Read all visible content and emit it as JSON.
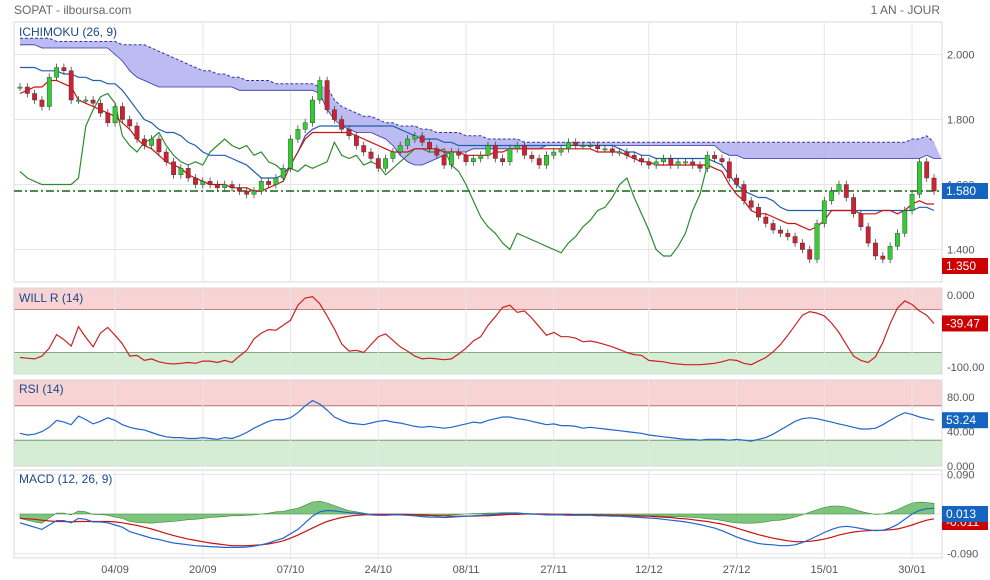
{
  "header": {
    "title": "SOPAT - ilboursa.com",
    "period": "1 AN - JOUR"
  },
  "colors": {
    "up": "#33cc33",
    "down": "#cc2233",
    "tenkan": "#cc1111",
    "kijun": "#1f5fb0",
    "chikou": "#2e8b2e",
    "cloud": "#b0b0f0",
    "cloud_line": "#3333aa",
    "level": "#116611",
    "willr": "#cc2222",
    "rsi": "#2266cc",
    "macd": "#2266cc",
    "signal": "#cc1111",
    "hist": "#66bb66",
    "badge_blue": "#1565c0",
    "badge_red": "#cc0000"
  },
  "chart_data": [
    {
      "type": "candlestick",
      "title": "ICHIMOKU (26, 9)",
      "ylim": [
        1.3,
        2.1
      ],
      "yticks": [
        "2.000",
        "1.800",
        "1.600",
        "1.400"
      ],
      "ytick_values": [
        2.0,
        1.8,
        1.6,
        1.4
      ],
      "x_labels": [
        "04/09",
        "20/09",
        "07/10",
        "24/10",
        "08/11",
        "27/11",
        "12/12",
        "27/12",
        "15/01",
        "30/01"
      ],
      "x_label_index": [
        13,
        25,
        37,
        49,
        61,
        73,
        86,
        98,
        110,
        122
      ],
      "last_price": "1.580",
      "low_badge": "1.350",
      "reference_level": 1.58,
      "closes": [
        1.9,
        1.88,
        1.86,
        1.84,
        1.93,
        1.96,
        1.95,
        1.86,
        1.86,
        1.86,
        1.85,
        1.82,
        1.79,
        1.84,
        1.8,
        1.78,
        1.74,
        1.72,
        1.74,
        1.7,
        1.67,
        1.63,
        1.65,
        1.62,
        1.6,
        1.61,
        1.6,
        1.59,
        1.6,
        1.59,
        1.58,
        1.57,
        1.58,
        1.61,
        1.6,
        1.62,
        1.65,
        1.74,
        1.77,
        1.79,
        1.86,
        1.92,
        1.83,
        1.8,
        1.77,
        1.75,
        1.72,
        1.7,
        1.68,
        1.65,
        1.68,
        1.7,
        1.72,
        1.74,
        1.75,
        1.73,
        1.71,
        1.69,
        1.66,
        1.7,
        1.69,
        1.67,
        1.68,
        1.69,
        1.72,
        1.68,
        1.67,
        1.71,
        1.72,
        1.69,
        1.68,
        1.66,
        1.69,
        1.7,
        1.71,
        1.73,
        1.72,
        1.72,
        1.72,
        1.71,
        1.71,
        1.7,
        1.7,
        1.69,
        1.68,
        1.67,
        1.66,
        1.67,
        1.68,
        1.66,
        1.67,
        1.67,
        1.66,
        1.65,
        1.69,
        1.68,
        1.67,
        1.62,
        1.6,
        1.55,
        1.53,
        1.5,
        1.48,
        1.46,
        1.45,
        1.44,
        1.42,
        1.4,
        1.37,
        1.48,
        1.55,
        1.58,
        1.6,
        1.56,
        1.51,
        1.47,
        1.42,
        1.38,
        1.37,
        1.41,
        1.45,
        1.52,
        1.57,
        1.67,
        1.62,
        1.58
      ],
      "tenkan_values": [
        1.88,
        1.89,
        1.9,
        1.9,
        1.92,
        1.92,
        1.91,
        1.9,
        1.86,
        1.85,
        1.84,
        1.83,
        1.82,
        1.81,
        1.79,
        1.77,
        1.74,
        1.72,
        1.71,
        1.69,
        1.67,
        1.66,
        1.65,
        1.63,
        1.62,
        1.61,
        1.6,
        1.6,
        1.6,
        1.59,
        1.59,
        1.59,
        1.58,
        1.58,
        1.59,
        1.6,
        1.61,
        1.66,
        1.7,
        1.74,
        1.76,
        1.76,
        1.76,
        1.76,
        1.76,
        1.76,
        1.75,
        1.74,
        1.73,
        1.72,
        1.71,
        1.7,
        1.7,
        1.7,
        1.71,
        1.71,
        1.71,
        1.71,
        1.7,
        1.7,
        1.7,
        1.69,
        1.69,
        1.69,
        1.69,
        1.7,
        1.7,
        1.71,
        1.71,
        1.71,
        1.71,
        1.71,
        1.71,
        1.71,
        1.71,
        1.71,
        1.71,
        1.71,
        1.71,
        1.7,
        1.7,
        1.7,
        1.7,
        1.69,
        1.68,
        1.67,
        1.67,
        1.66,
        1.66,
        1.66,
        1.66,
        1.66,
        1.66,
        1.66,
        1.66,
        1.65,
        1.64,
        1.6,
        1.57,
        1.55,
        1.52,
        1.51,
        1.51,
        1.5,
        1.49,
        1.48,
        1.48,
        1.47,
        1.46,
        1.47,
        1.49,
        1.52,
        1.52,
        1.52,
        1.52,
        1.51,
        1.51,
        1.51,
        1.52,
        1.52,
        1.51,
        1.52,
        1.54,
        1.55,
        1.54,
        1.54
      ],
      "kijun_values": [
        1.96,
        1.96,
        1.96,
        1.95,
        1.95,
        1.95,
        1.94,
        1.94,
        1.93,
        1.93,
        1.92,
        1.92,
        1.91,
        1.91,
        1.89,
        1.86,
        1.83,
        1.8,
        1.79,
        1.77,
        1.76,
        1.76,
        1.75,
        1.73,
        1.72,
        1.7,
        1.69,
        1.69,
        1.69,
        1.68,
        1.67,
        1.66,
        1.64,
        1.62,
        1.62,
        1.62,
        1.63,
        1.66,
        1.7,
        1.75,
        1.77,
        1.78,
        1.78,
        1.78,
        1.78,
        1.78,
        1.78,
        1.78,
        1.78,
        1.78,
        1.78,
        1.78,
        1.77,
        1.76,
        1.75,
        1.74,
        1.74,
        1.74,
        1.73,
        1.73,
        1.72,
        1.72,
        1.72,
        1.72,
        1.72,
        1.72,
        1.72,
        1.72,
        1.72,
        1.72,
        1.72,
        1.72,
        1.72,
        1.72,
        1.72,
        1.72,
        1.72,
        1.72,
        1.72,
        1.72,
        1.72,
        1.72,
        1.71,
        1.7,
        1.7,
        1.69,
        1.69,
        1.68,
        1.68,
        1.68,
        1.68,
        1.68,
        1.68,
        1.68,
        1.68,
        1.67,
        1.66,
        1.63,
        1.6,
        1.58,
        1.57,
        1.56,
        1.56,
        1.55,
        1.53,
        1.52,
        1.52,
        1.52,
        1.52,
        1.52,
        1.52,
        1.52,
        1.52,
        1.52,
        1.52,
        1.52,
        1.52,
        1.52,
        1.52,
        1.52,
        1.52,
        1.52,
        1.52,
        1.53,
        1.53,
        1.52
      ],
      "chikou_values": [
        1.64,
        1.62,
        1.61,
        1.6,
        1.6,
        1.6,
        1.6,
        1.6,
        1.62,
        1.78,
        1.83,
        1.87,
        1.88,
        1.85,
        1.75,
        1.72,
        1.7,
        1.73,
        1.74,
        1.76,
        1.72,
        1.69,
        1.67,
        1.66,
        1.67,
        1.66,
        1.7,
        1.72,
        1.74,
        1.72,
        1.71,
        1.72,
        1.69,
        1.7,
        1.67,
        1.66,
        1.64,
        1.65,
        1.64,
        1.66,
        1.65,
        1.66,
        1.67,
        1.73,
        1.69,
        1.68,
        1.69,
        1.66,
        1.67,
        1.66,
        1.63,
        1.65,
        1.67,
        1.69,
        1.71,
        1.71,
        1.7,
        1.7,
        1.71,
        1.66,
        1.64,
        1.6,
        1.55,
        1.5,
        1.47,
        1.45,
        1.42,
        1.4,
        1.45,
        1.44,
        1.43,
        1.42,
        1.41,
        1.4,
        1.39,
        1.42,
        1.44,
        1.47,
        1.49,
        1.52,
        1.53,
        1.56,
        1.6,
        1.62,
        1.56,
        1.51,
        1.46,
        1.4,
        1.38,
        1.38,
        1.41,
        1.45,
        1.52,
        1.57,
        1.66
      ],
      "span_a_values": [
        2.05,
        2.05,
        2.05,
        2.05,
        2.05,
        2.04,
        2.04,
        2.04,
        2.04,
        2.04,
        2.04,
        2.04,
        2.04,
        2.04,
        2.03,
        2.03,
        2.03,
        2.03,
        2.02,
        2.01,
        2.0,
        1.99,
        1.98,
        1.97,
        1.96,
        1.95,
        1.95,
        1.94,
        1.94,
        1.93,
        1.93,
        1.92,
        1.92,
        1.92,
        1.92,
        1.91,
        1.91,
        1.91,
        1.91,
        1.91,
        1.91,
        1.9,
        1.9,
        1.86,
        1.84,
        1.83,
        1.82,
        1.81,
        1.81,
        1.8,
        1.79,
        1.79,
        1.78,
        1.78,
        1.78,
        1.77,
        1.77,
        1.76,
        1.76,
        1.76,
        1.76,
        1.75,
        1.75,
        1.75,
        1.74,
        1.74,
        1.74,
        1.74,
        1.74,
        1.73,
        1.73,
        1.73,
        1.73,
        1.73,
        1.73,
        1.73,
        1.73,
        1.73,
        1.73,
        1.73,
        1.73,
        1.73,
        1.73,
        1.73,
        1.73,
        1.73,
        1.73,
        1.73,
        1.73,
        1.73,
        1.73,
        1.73,
        1.73,
        1.73,
        1.73,
        1.73,
        1.73,
        1.73,
        1.73,
        1.73,
        1.73,
        1.73,
        1.73,
        1.73,
        1.73,
        1.73,
        1.73,
        1.73,
        1.73,
        1.73,
        1.73,
        1.73,
        1.73,
        1.73,
        1.73,
        1.73,
        1.73,
        1.73,
        1.73,
        1.73,
        1.73,
        1.73,
        1.74,
        1.74,
        1.75,
        1.73
      ],
      "span_b_values": [
        2.03,
        2.03,
        2.03,
        2.02,
        2.02,
        2.02,
        2.02,
        2.02,
        2.02,
        2.02,
        2.02,
        2.02,
        2.02,
        2.0,
        1.98,
        1.95,
        1.93,
        1.92,
        1.91,
        1.9,
        1.9,
        1.9,
        1.9,
        1.9,
        1.9,
        1.9,
        1.9,
        1.9,
        1.9,
        1.9,
        1.89,
        1.89,
        1.89,
        1.89,
        1.89,
        1.89,
        1.89,
        1.89,
        1.89,
        1.89,
        1.89,
        1.88,
        1.83,
        1.8,
        1.78,
        1.77,
        1.76,
        1.76,
        1.76,
        1.75,
        1.74,
        1.72,
        1.69,
        1.67,
        1.66,
        1.66,
        1.67,
        1.68,
        1.69,
        1.7,
        1.7,
        1.7,
        1.71,
        1.71,
        1.71,
        1.71,
        1.71,
        1.71,
        1.71,
        1.71,
        1.71,
        1.71,
        1.72,
        1.72,
        1.72,
        1.72,
        1.72,
        1.72,
        1.72,
        1.72,
        1.72,
        1.72,
        1.72,
        1.72,
        1.72,
        1.72,
        1.72,
        1.72,
        1.72,
        1.72,
        1.72,
        1.72,
        1.72,
        1.72,
        1.72,
        1.72,
        1.7,
        1.69,
        1.69,
        1.68,
        1.68,
        1.68,
        1.68,
        1.68,
        1.68,
        1.68,
        1.68,
        1.68,
        1.68,
        1.68,
        1.68,
        1.68,
        1.68,
        1.68,
        1.68,
        1.68,
        1.68,
        1.68,
        1.68,
        1.68,
        1.68,
        1.68,
        1.68,
        1.68,
        1.69,
        1.68,
        1.68
      ]
    },
    {
      "type": "line",
      "title": "WILL R (14)",
      "ylim": [
        -110,
        10
      ],
      "yticks": [
        "0.000",
        "-100.00"
      ],
      "ytick_values": [
        0,
        -100
      ],
      "overbought": -20,
      "oversold": -80,
      "last_badge": "-39.47",
      "values": [
        -87,
        -88,
        -89,
        -85,
        -74,
        -55,
        -62,
        -71,
        -44,
        -59,
        -72,
        -53,
        -45,
        -56,
        -68,
        -85,
        -84,
        -91,
        -89,
        -93,
        -95,
        -96,
        -95,
        -94,
        -95,
        -92,
        -92,
        -94,
        -91,
        -94,
        -85,
        -77,
        -61,
        -53,
        -48,
        -49,
        -42,
        -35,
        -14,
        -4,
        -2,
        -12,
        -29,
        -47,
        -68,
        -78,
        -77,
        -80,
        -69,
        -58,
        -54,
        -63,
        -72,
        -78,
        -85,
        -89,
        -88,
        -89,
        -90,
        -89,
        -82,
        -74,
        -64,
        -58,
        -42,
        -30,
        -17,
        -14,
        -24,
        -22,
        -32,
        -44,
        -56,
        -52,
        -58,
        -58,
        -60,
        -65,
        -64,
        -66,
        -69,
        -72,
        -76,
        -80,
        -83,
        -84,
        -91,
        -92,
        -93,
        -95,
        -96,
        -97,
        -97,
        -97,
        -96,
        -95,
        -93,
        -90,
        -91,
        -95,
        -97,
        -92,
        -87,
        -79,
        -69,
        -56,
        -42,
        -28,
        -23,
        -25,
        -29,
        -39,
        -52,
        -69,
        -85,
        -91,
        -94,
        -86,
        -66,
        -40,
        -18,
        -8,
        -13,
        -22,
        -28,
        -39.47
      ]
    },
    {
      "type": "line",
      "title": "RSI (14)",
      "ylim": [
        0,
        100
      ],
      "yticks": [
        "80.00",
        "40.00",
        "0.000"
      ],
      "ytick_values": [
        80,
        40,
        0
      ],
      "overbought": 70,
      "oversold": 30,
      "last_badge": "53.24",
      "values": [
        38,
        36,
        37,
        40,
        45,
        53,
        51,
        48,
        58,
        54,
        49,
        52,
        56,
        53,
        48,
        45,
        43,
        42,
        39,
        36,
        34,
        33,
        33,
        32,
        32,
        33,
        32,
        31,
        33,
        32,
        35,
        39,
        44,
        48,
        52,
        54,
        54,
        56,
        62,
        70,
        76,
        72,
        65,
        57,
        53,
        50,
        49,
        48,
        50,
        52,
        53,
        51,
        50,
        48,
        46,
        45,
        46,
        45,
        44,
        45,
        47,
        49,
        51,
        50,
        53,
        55,
        57,
        57,
        55,
        54,
        52,
        50,
        48,
        49,
        47,
        47,
        46,
        44,
        45,
        44,
        43,
        42,
        41,
        40,
        39,
        38,
        36,
        35,
        34,
        33,
        32,
        31,
        31,
        30,
        31,
        31,
        31,
        30,
        31,
        30,
        29,
        31,
        33,
        37,
        42,
        47,
        52,
        55,
        56,
        55,
        53,
        51,
        49,
        47,
        45,
        43,
        43,
        44,
        48,
        53,
        58,
        62,
        60,
        57,
        55,
        53.24
      ]
    },
    {
      "type": "line",
      "title": "MACD (12, 26, 9)",
      "ylim": [
        -0.1,
        0.1
      ],
      "yticks": [
        "0.090",
        "0.000",
        "-0.090"
      ],
      "ytick_values": [
        0.09,
        0,
        -0.09
      ],
      "last_badge": "0.013",
      "signal_badge": "-0.011",
      "macd_values": [
        -0.02,
        -0.025,
        -0.03,
        -0.035,
        -0.025,
        -0.015,
        -0.015,
        -0.02,
        -0.01,
        -0.012,
        -0.018,
        -0.018,
        -0.02,
        -0.025,
        -0.03,
        -0.04,
        -0.045,
        -0.05,
        -0.055,
        -0.058,
        -0.062,
        -0.066,
        -0.068,
        -0.07,
        -0.072,
        -0.073,
        -0.074,
        -0.075,
        -0.076,
        -0.076,
        -0.076,
        -0.075,
        -0.073,
        -0.07,
        -0.066,
        -0.06,
        -0.055,
        -0.045,
        -0.035,
        -0.02,
        -0.005,
        0.005,
        0.008,
        0.007,
        0.005,
        0.003,
        0.002,
        0.0,
        -0.002,
        -0.003,
        -0.003,
        -0.002,
        -0.002,
        -0.003,
        -0.004,
        -0.006,
        -0.007,
        -0.007,
        -0.008,
        -0.007,
        -0.006,
        -0.005,
        -0.004,
        -0.003,
        -0.002,
        -0.001,
        0.001,
        0.002,
        0.002,
        0.001,
        0.0,
        -0.001,
        -0.002,
        -0.002,
        -0.002,
        -0.003,
        -0.003,
        -0.003,
        -0.003,
        -0.004,
        -0.004,
        -0.005,
        -0.005,
        -0.006,
        -0.007,
        -0.008,
        -0.009,
        -0.01,
        -0.012,
        -0.014,
        -0.016,
        -0.018,
        -0.021,
        -0.024,
        -0.028,
        -0.032,
        -0.038,
        -0.045,
        -0.052,
        -0.058,
        -0.063,
        -0.067,
        -0.069,
        -0.07,
        -0.072,
        -0.072,
        -0.07,
        -0.065,
        -0.058,
        -0.05,
        -0.042,
        -0.035,
        -0.03,
        -0.028,
        -0.03,
        -0.033,
        -0.036,
        -0.038,
        -0.037,
        -0.032,
        -0.024,
        -0.012,
        0.0,
        0.008,
        0.012,
        0.013
      ],
      "signal_values": [
        -0.01,
        -0.011,
        -0.012,
        -0.014,
        -0.016,
        -0.017,
        -0.017,
        -0.018,
        -0.017,
        -0.017,
        -0.017,
        -0.017,
        -0.017,
        -0.018,
        -0.02,
        -0.023,
        -0.026,
        -0.03,
        -0.034,
        -0.039,
        -0.044,
        -0.049,
        -0.053,
        -0.057,
        -0.06,
        -0.063,
        -0.066,
        -0.068,
        -0.07,
        -0.072,
        -0.072,
        -0.072,
        -0.071,
        -0.07,
        -0.068,
        -0.065,
        -0.061,
        -0.055,
        -0.048,
        -0.04,
        -0.032,
        -0.024,
        -0.017,
        -0.012,
        -0.008,
        -0.005,
        -0.003,
        -0.002,
        -0.001,
        -0.001,
        -0.001,
        -0.001,
        -0.001,
        -0.001,
        -0.002,
        -0.002,
        -0.003,
        -0.004,
        -0.004,
        -0.005,
        -0.005,
        -0.005,
        -0.005,
        -0.004,
        -0.004,
        -0.003,
        -0.002,
        -0.001,
        -0.001,
        0.0,
        0.0,
        0.0,
        0.0,
        -0.001,
        -0.001,
        -0.001,
        -0.002,
        -0.002,
        -0.002,
        -0.002,
        -0.003,
        -0.003,
        -0.003,
        -0.004,
        -0.004,
        -0.005,
        -0.005,
        -0.006,
        -0.007,
        -0.008,
        -0.01,
        -0.011,
        -0.013,
        -0.015,
        -0.017,
        -0.02,
        -0.023,
        -0.027,
        -0.032,
        -0.037,
        -0.042,
        -0.047,
        -0.051,
        -0.055,
        -0.058,
        -0.061,
        -0.063,
        -0.063,
        -0.062,
        -0.06,
        -0.057,
        -0.053,
        -0.048,
        -0.044,
        -0.041,
        -0.039,
        -0.038,
        -0.037,
        -0.037,
        -0.036,
        -0.034,
        -0.03,
        -0.025,
        -0.019,
        -0.014,
        -0.011
      ]
    }
  ]
}
